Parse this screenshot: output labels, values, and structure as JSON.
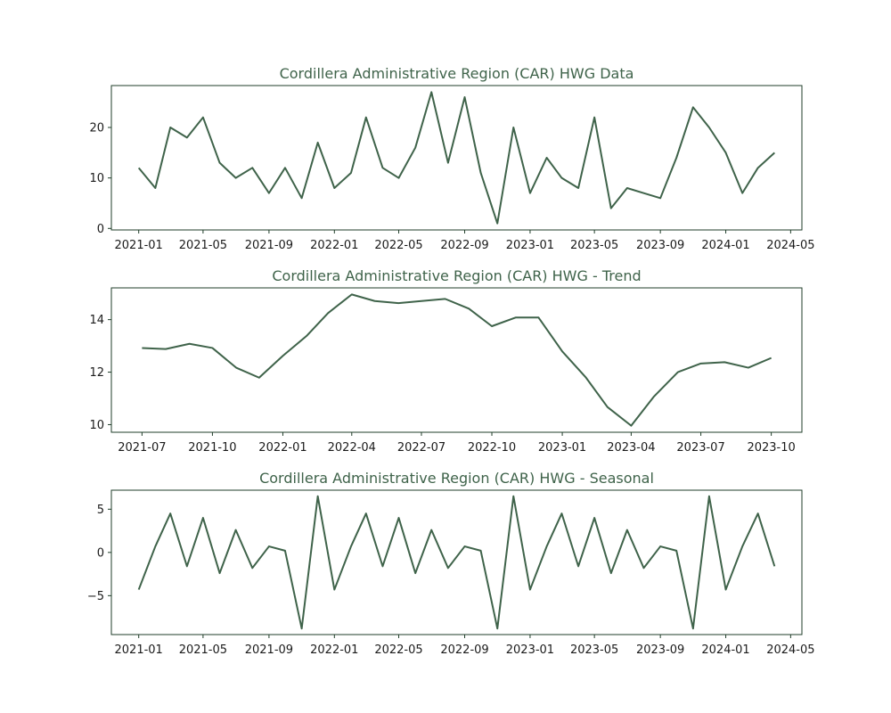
{
  "colors": {
    "line": "#3f634a",
    "axis": "#1f3d29",
    "text": "#3f634a",
    "tick_text": "#1a1a1a",
    "background": "#ffffff"
  },
  "chart_data": [
    {
      "type": "line",
      "title": "Cordillera Administrative Region (CAR) HWG Data",
      "xlabel": "",
      "ylabel": "",
      "x_type": "date-monthly",
      "x": [
        "2021-01",
        "2021-02",
        "2021-03",
        "2021-04",
        "2021-05",
        "2021-06",
        "2021-07",
        "2021-08",
        "2021-09",
        "2021-10",
        "2021-11",
        "2021-12",
        "2022-01",
        "2022-02",
        "2022-03",
        "2022-04",
        "2022-05",
        "2022-06",
        "2022-07",
        "2022-08",
        "2022-09",
        "2022-10",
        "2022-11",
        "2022-12",
        "2023-01",
        "2023-02",
        "2023-03",
        "2023-04",
        "2023-05",
        "2023-06",
        "2023-07",
        "2023-08",
        "2023-09",
        "2023-10",
        "2023-11",
        "2023-12",
        "2024-01",
        "2024-02",
        "2024-03",
        "2024-04"
      ],
      "values": [
        12,
        8,
        20,
        18,
        22,
        13,
        10,
        12,
        7,
        12,
        6,
        17,
        8,
        11,
        22,
        12,
        10,
        16,
        27,
        13,
        26,
        11,
        1,
        20,
        7,
        14,
        10,
        8,
        22,
        4,
        8,
        7,
        6,
        14,
        24,
        20,
        15,
        7,
        12,
        15
      ],
      "xlim": [
        "2020-11-11",
        "2024-05-22"
      ],
      "ylim": [
        -0.3,
        28.3
      ],
      "yticks": [
        0,
        10,
        20
      ],
      "yticklabels": [
        "0",
        "10",
        "20"
      ],
      "xticks": [
        "2021-01",
        "2021-05",
        "2021-09",
        "2022-01",
        "2022-05",
        "2022-09",
        "2023-01",
        "2023-05",
        "2023-09",
        "2024-01",
        "2024-05"
      ],
      "xticklabels": [
        "2021-01",
        "2021-05",
        "2021-09",
        "2022-01",
        "2022-05",
        "2022-09",
        "2023-01",
        "2023-05",
        "2023-09",
        "2024-01",
        "2024-05"
      ],
      "grid": false,
      "legend": "none"
    },
    {
      "type": "line",
      "title": "Cordillera Administrative Region (CAR) HWG - Trend",
      "xlabel": "",
      "ylabel": "",
      "x_type": "date-monthly",
      "x": [
        "2021-07",
        "2021-08",
        "2021-09",
        "2021-10",
        "2021-11",
        "2021-12",
        "2022-01",
        "2022-02",
        "2022-03",
        "2022-04",
        "2022-05",
        "2022-06",
        "2022-07",
        "2022-08",
        "2022-09",
        "2022-10",
        "2022-11",
        "2022-12",
        "2023-01",
        "2023-02",
        "2023-03",
        "2023-04",
        "2023-05",
        "2023-06",
        "2023-07",
        "2023-08",
        "2023-09",
        "2023-10"
      ],
      "values": [
        12.92,
        12.88,
        13.08,
        12.92,
        12.17,
        11.79,
        12.62,
        13.38,
        14.25,
        14.96,
        14.71,
        14.63,
        14.71,
        14.79,
        14.42,
        13.75,
        14.08,
        14.08,
        12.79,
        11.79,
        10.67,
        9.96,
        11.08,
        12.0,
        12.33,
        12.38,
        12.17,
        12.54
      ],
      "xlim": [
        "2021-05-22",
        "2023-11-10"
      ],
      "ylim": [
        9.71,
        15.21
      ],
      "yticks": [
        10,
        12,
        14
      ],
      "yticklabels": [
        "10",
        "12",
        "14"
      ],
      "xticks": [
        "2021-07",
        "2021-10",
        "2022-01",
        "2022-04",
        "2022-07",
        "2022-10",
        "2023-01",
        "2023-04",
        "2023-07",
        "2023-10"
      ],
      "xticklabels": [
        "2021-07",
        "2021-10",
        "2022-01",
        "2022-04",
        "2022-07",
        "2022-10",
        "2023-01",
        "2023-04",
        "2023-07",
        "2023-10"
      ],
      "grid": false,
      "legend": "none"
    },
    {
      "type": "line",
      "title": "Cordillera Administrative Region (CAR) HWG - Seasonal",
      "xlabel": "",
      "ylabel": "",
      "x_type": "date-monthly",
      "x": [
        "2021-01",
        "2021-02",
        "2021-03",
        "2021-04",
        "2021-05",
        "2021-06",
        "2021-07",
        "2021-08",
        "2021-09",
        "2021-10",
        "2021-11",
        "2021-12",
        "2022-01",
        "2022-02",
        "2022-03",
        "2022-04",
        "2022-05",
        "2022-06",
        "2022-07",
        "2022-08",
        "2022-09",
        "2022-10",
        "2022-11",
        "2022-12",
        "2023-01",
        "2023-02",
        "2023-03",
        "2023-04",
        "2023-05",
        "2023-06",
        "2023-07",
        "2023-08",
        "2023-09",
        "2023-10",
        "2023-11",
        "2023-12",
        "2024-01",
        "2024-02",
        "2024-03",
        "2024-04"
      ],
      "values": [
        -4.3,
        0.7,
        4.5,
        -1.6,
        4.0,
        -2.4,
        2.6,
        -1.8,
        0.7,
        0.2,
        -8.8,
        6.5,
        -4.3,
        0.7,
        4.5,
        -1.6,
        4.0,
        -2.4,
        2.6,
        -1.8,
        0.7,
        0.2,
        -8.8,
        6.5,
        -4.3,
        0.7,
        4.5,
        -1.6,
        4.0,
        -2.4,
        2.6,
        -1.8,
        0.7,
        0.2,
        -8.8,
        6.5,
        -4.3,
        0.7,
        4.5,
        -1.6
      ],
      "xlim": [
        "2020-11-11",
        "2024-05-22"
      ],
      "ylim": [
        -9.5,
        7.2
      ],
      "yticks": [
        -5,
        0,
        5
      ],
      "yticklabels": [
        "−5",
        "0",
        "5"
      ],
      "xticks": [
        "2021-01",
        "2021-05",
        "2021-09",
        "2022-01",
        "2022-05",
        "2022-09",
        "2023-01",
        "2023-05",
        "2023-09",
        "2024-01",
        "2024-05"
      ],
      "xticklabels": [
        "2021-01",
        "2021-05",
        "2021-09",
        "2022-01",
        "2022-05",
        "2022-09",
        "2023-01",
        "2023-05",
        "2023-09",
        "2024-01",
        "2024-05"
      ],
      "grid": false,
      "legend": "none"
    }
  ]
}
